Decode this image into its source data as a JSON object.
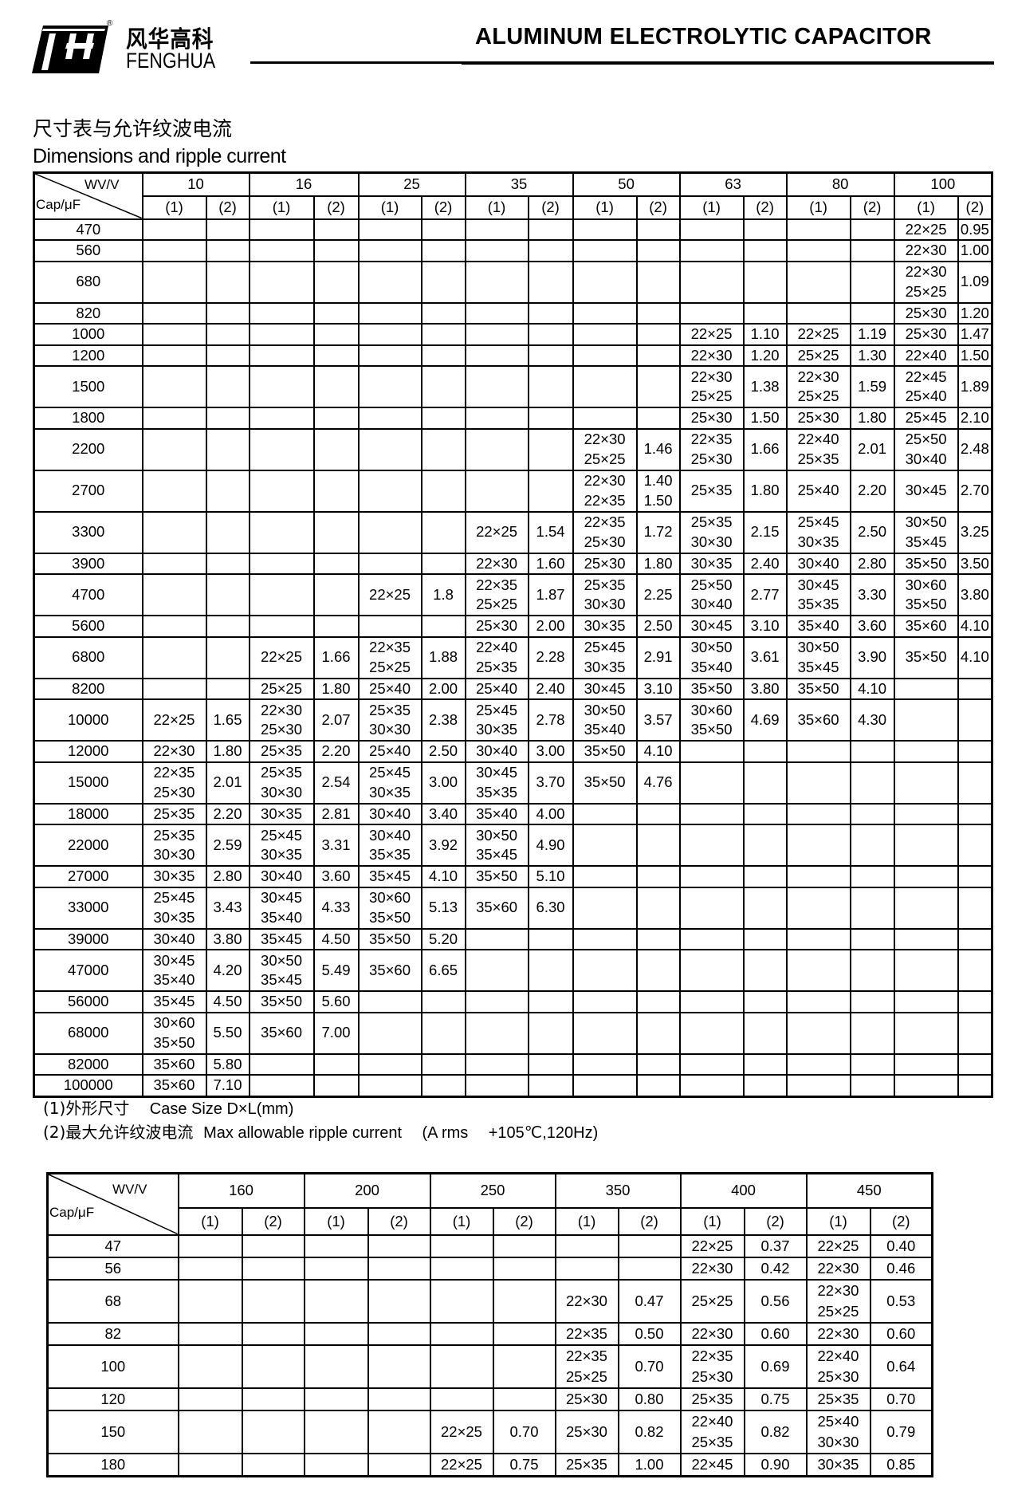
{
  "header": {
    "brand_cn": "风华高科",
    "brand_en": "FENGHUA",
    "registered_mark": "®",
    "title": "ALUMINUM ELECTROLYTIC CAPACITOR"
  },
  "section": {
    "title_cn": "尺寸表与允许纹波电流",
    "title_en": "Dimensions and ripple current"
  },
  "table1": {
    "corner_top": "WV/V",
    "corner_bottom": "Cap/μF",
    "voltages": [
      "10",
      "16",
      "25",
      "35",
      "50",
      "63",
      "80",
      "100"
    ],
    "sub_headers": [
      "(1)",
      "(2)"
    ],
    "rows": [
      {
        "cap": "470",
        "cells": [
          "",
          "",
          "",
          "",
          "",
          "",
          "",
          "",
          "",
          "",
          "",
          "",
          "",
          "",
          "22×25",
          "0.95"
        ]
      },
      {
        "cap": "560",
        "cells": [
          "",
          "",
          "",
          "",
          "",
          "",
          "",
          "",
          "",
          "",
          "",
          "",
          "",
          "",
          "22×30",
          "1.00"
        ]
      },
      {
        "cap": "680",
        "cells": [
          "",
          "",
          "",
          "",
          "",
          "",
          "",
          "",
          "",
          "",
          "",
          "",
          "",
          "",
          "22×30\n25×25",
          "1.09"
        ]
      },
      {
        "cap": "820",
        "cells": [
          "",
          "",
          "",
          "",
          "",
          "",
          "",
          "",
          "",
          "",
          "",
          "",
          "",
          "",
          "25×30",
          "1.20"
        ]
      },
      {
        "cap": "1000",
        "cells": [
          "",
          "",
          "",
          "",
          "",
          "",
          "",
          "",
          "",
          "",
          "22×25",
          "1.10",
          "22×25",
          "1.19",
          "25×30",
          "1.47"
        ]
      },
      {
        "cap": "1200",
        "cells": [
          "",
          "",
          "",
          "",
          "",
          "",
          "",
          "",
          "",
          "",
          "22×30",
          "1.20",
          "25×25",
          "1.30",
          "22×40",
          "1.50"
        ]
      },
      {
        "cap": "1500",
        "cells": [
          "",
          "",
          "",
          "",
          "",
          "",
          "",
          "",
          "",
          "",
          "22×30\n25×25",
          "1.38",
          "22×30\n25×25",
          "1.59",
          "22×45\n25×40",
          "1.89"
        ]
      },
      {
        "cap": "1800",
        "cells": [
          "",
          "",
          "",
          "",
          "",
          "",
          "",
          "",
          "",
          "",
          "25×30",
          "1.50",
          "25×30",
          "1.80",
          "25×45",
          "2.10"
        ]
      },
      {
        "cap": "2200",
        "cells": [
          "",
          "",
          "",
          "",
          "",
          "",
          "",
          "",
          "22×30\n25×25",
          "1.46",
          "22×35\n25×30",
          "1.66",
          "22×40\n25×35",
          "2.01",
          "25×50\n30×40",
          "2.48"
        ]
      },
      {
        "cap": "2700",
        "cells": [
          "",
          "",
          "",
          "",
          "",
          "",
          "",
          "",
          "22×30\n22×35",
          "1.40\n1.50",
          "25×35",
          "1.80",
          "25×40",
          "2.20",
          "30×45",
          "2.70"
        ]
      },
      {
        "cap": "3300",
        "cells": [
          "",
          "",
          "",
          "",
          "",
          "",
          "22×25",
          "1.54",
          "22×35\n25×30",
          "1.72",
          "25×35\n30×30",
          "2.15",
          "25×45\n30×35",
          "2.50",
          "30×50\n35×45",
          "3.25"
        ]
      },
      {
        "cap": "3900",
        "cells": [
          "",
          "",
          "",
          "",
          "",
          "",
          "22×30",
          "1.60",
          "25×30",
          "1.80",
          "30×35",
          "2.40",
          "30×40",
          "2.80",
          "35×50",
          "3.50"
        ]
      },
      {
        "cap": "4700",
        "cells": [
          "",
          "",
          "",
          "",
          "22×25",
          "1.8",
          "22×35\n25×25",
          "1.87",
          "25×35\n30×30",
          "2.25",
          "25×50\n30×40",
          "2.77",
          "30×45\n35×35",
          "3.30",
          "30×60\n35×50",
          "3.80"
        ]
      },
      {
        "cap": "5600",
        "cells": [
          "",
          "",
          "",
          "",
          "",
          "",
          "25×30",
          "2.00",
          "30×35",
          "2.50",
          "30×45",
          "3.10",
          "35×40",
          "3.60",
          "35×60",
          "4.10"
        ]
      },
      {
        "cap": "6800",
        "cells": [
          "",
          "",
          "22×25",
          "1.66",
          "22×35\n25×25",
          "1.88",
          "22×40\n25×35",
          "2.28",
          "25×45\n30×35",
          "2.91",
          "30×50\n35×40",
          "3.61",
          "30×50\n35×45",
          "3.90",
          "35×50",
          "4.10"
        ]
      },
      {
        "cap": "8200",
        "cells": [
          "",
          "",
          "25×25",
          "1.80",
          "25×40",
          "2.00",
          "25×40",
          "2.40",
          "30×45",
          "3.10",
          "35×50",
          "3.80",
          "35×50",
          "4.10",
          "",
          ""
        ]
      },
      {
        "cap": "10000",
        "cells": [
          "22×25",
          "1.65",
          "22×30\n25×30",
          "2.07",
          "25×35\n30×30",
          "2.38",
          "25×45\n30×35",
          "2.78",
          "30×50\n35×40",
          "3.57",
          "30×60\n35×50",
          "4.69",
          "35×60",
          "4.30",
          "",
          ""
        ]
      },
      {
        "cap": "12000",
        "cells": [
          "22×30",
          "1.80",
          "25×35",
          "2.20",
          "25×40",
          "2.50",
          "30×40",
          "3.00",
          "35×50",
          "4.10",
          "",
          "",
          "",
          "",
          "",
          ""
        ]
      },
      {
        "cap": "15000",
        "cells": [
          "22×35\n25×30",
          "2.01",
          "25×35\n30×30",
          "2.54",
          "25×45\n30×35",
          "3.00",
          "30×45\n35×35",
          "3.70",
          "35×50",
          "4.76",
          "",
          "",
          "",
          "",
          "",
          ""
        ]
      },
      {
        "cap": "18000",
        "cells": [
          "25×35",
          "2.20",
          "30×35",
          "2.81",
          "30×40",
          "3.40",
          "35×40",
          "4.00",
          "",
          "",
          "",
          "",
          "",
          "",
          "",
          ""
        ]
      },
      {
        "cap": "22000",
        "cells": [
          "25×35\n30×30",
          "2.59",
          "25×45\n30×35",
          "3.31",
          "30×40\n35×35",
          "3.92",
          "30×50\n35×45",
          "4.90",
          "",
          "",
          "",
          "",
          "",
          "",
          "",
          ""
        ]
      },
      {
        "cap": "27000",
        "cells": [
          "30×35",
          "2.80",
          "30×40",
          "3.60",
          "35×45",
          "4.10",
          "35×50",
          "5.10",
          "",
          "",
          "",
          "",
          "",
          "",
          "",
          ""
        ]
      },
      {
        "cap": "33000",
        "cells": [
          "25×45\n30×35",
          "3.43",
          "30×45\n35×40",
          "4.33",
          "30×60\n35×50",
          "5.13",
          "35×60",
          "6.30",
          "",
          "",
          "",
          "",
          "",
          "",
          "",
          ""
        ]
      },
      {
        "cap": "39000",
        "cells": [
          "30×40",
          "3.80",
          "35×45",
          "4.50",
          "35×50",
          "5.20",
          "",
          "",
          "",
          "",
          "",
          "",
          "",
          "",
          "",
          ""
        ]
      },
      {
        "cap": "47000",
        "cells": [
          "30×45\n35×40",
          "4.20",
          "30×50\n35×45",
          "5.49",
          "35×60",
          "6.65",
          "",
          "",
          "",
          "",
          "",
          "",
          "",
          "",
          "",
          ""
        ]
      },
      {
        "cap": "56000",
        "cells": [
          "35×45",
          "4.50",
          "35×50",
          "5.60",
          "",
          "",
          "",
          "",
          "",
          "",
          "",
          "",
          "",
          "",
          "",
          ""
        ]
      },
      {
        "cap": "68000",
        "cells": [
          "30×60\n35×50",
          "5.50",
          "35×60",
          "7.00",
          "",
          "",
          "",
          "",
          "",
          "",
          "",
          "",
          "",
          "",
          "",
          ""
        ]
      },
      {
        "cap": "82000",
        "cells": [
          "35×60",
          "5.80",
          "",
          "",
          "",
          "",
          "",
          "",
          "",
          "",
          "",
          "",
          "",
          "",
          "",
          ""
        ]
      },
      {
        "cap": "100000",
        "cells": [
          "35×60",
          "7.10",
          "",
          "",
          "",
          "",
          "",
          "",
          "",
          "",
          "",
          "",
          "",
          "",
          "",
          ""
        ]
      }
    ]
  },
  "notes": {
    "note1_prefix": "(1)外形尺寸",
    "note1_text": "Case Size D×L(mm)",
    "note2_prefix": "(2)最大允许纹波电流",
    "note2_text": "Max allowable ripple current",
    "note2_unit": "(A rms",
    "note2_cond": "+105℃,120Hz)"
  },
  "table2": {
    "corner_top": "WV/V",
    "corner_bottom": "Cap/μF",
    "voltages": [
      "160",
      "200",
      "250",
      "350",
      "400",
      "450"
    ],
    "sub_headers": [
      "(1)",
      "(2)"
    ],
    "rows": [
      {
        "cap": "47",
        "cells": [
          "",
          "",
          "",
          "",
          "",
          "",
          "",
          "",
          "22×25",
          "0.37",
          "22×25",
          "0.40"
        ]
      },
      {
        "cap": "56",
        "cells": [
          "",
          "",
          "",
          "",
          "",
          "",
          "",
          "",
          "22×30",
          "0.42",
          "22×30",
          "0.46"
        ]
      },
      {
        "cap": "68",
        "cells": [
          "",
          "",
          "",
          "",
          "",
          "",
          "22×30",
          "0.47",
          "25×25",
          "0.56",
          "22×30\n25×25",
          "0.53"
        ]
      },
      {
        "cap": "82",
        "cells": [
          "",
          "",
          "",
          "",
          "",
          "",
          "22×35",
          "0.50",
          "22×30",
          "0.60",
          "22×30",
          "0.60"
        ]
      },
      {
        "cap": "100",
        "cells": [
          "",
          "",
          "",
          "",
          "",
          "",
          "22×35\n25×25",
          "0.70",
          "22×35\n25×30",
          "0.69",
          "22×40\n25×30",
          "0.64"
        ]
      },
      {
        "cap": "120",
        "cells": [
          "",
          "",
          "",
          "",
          "",
          "",
          "25×30",
          "0.80",
          "25×35",
          "0.75",
          "25×35",
          "0.70"
        ]
      },
      {
        "cap": "150",
        "cells": [
          "",
          "",
          "",
          "",
          "22×25",
          "0.70",
          "25×30",
          "0.82",
          "22×40\n25×35",
          "0.82",
          "25×40\n30×30",
          "0.79"
        ]
      },
      {
        "cap": "180",
        "cells": [
          "",
          "",
          "",
          "",
          "22×25",
          "0.75",
          "25×35",
          "1.00",
          "22×45",
          "0.90",
          "30×35",
          "0.85"
        ]
      }
    ]
  }
}
